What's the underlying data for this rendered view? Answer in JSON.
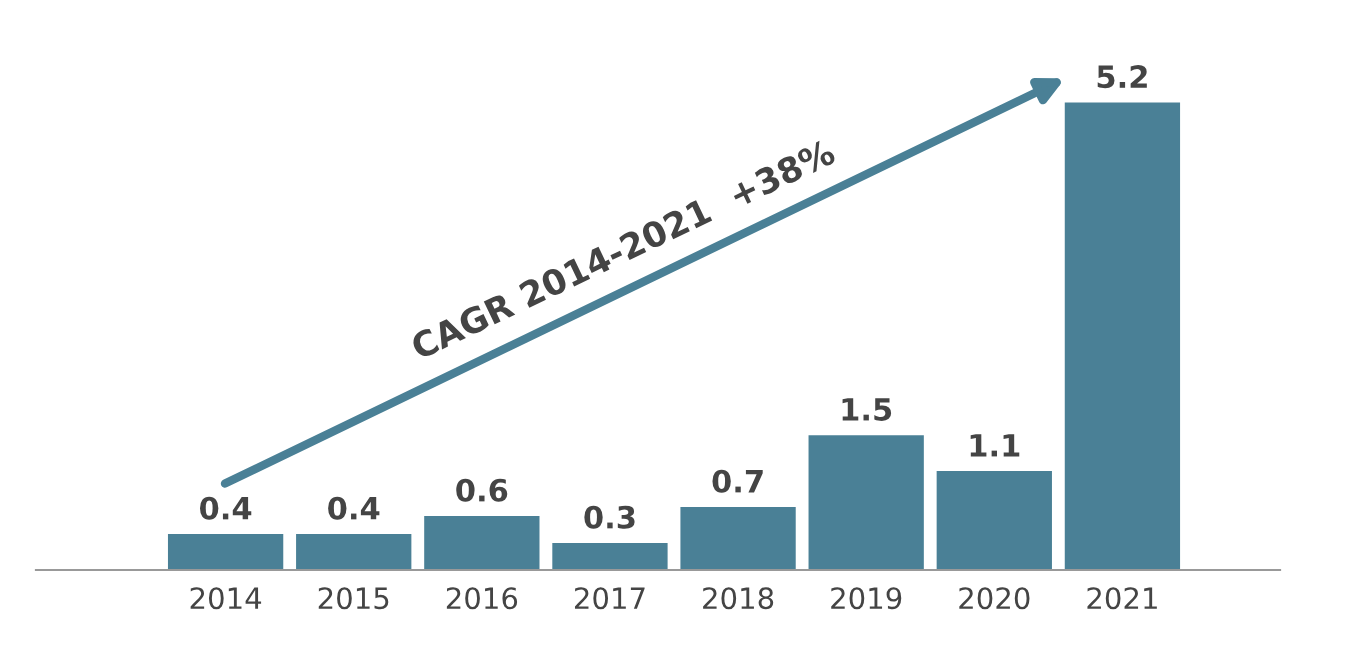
{
  "chart_data": {
    "type": "bar",
    "categories": [
      "2014",
      "2015",
      "2016",
      "2017",
      "2018",
      "2019",
      "2020",
      "2021"
    ],
    "values": [
      0.4,
      0.4,
      0.6,
      0.3,
      0.7,
      1.5,
      1.1,
      5.2
    ],
    "color": "#4a8096",
    "data_labels": true,
    "grid": false,
    "legend": false,
    "annotations": [
      "CAGR 2014-2021  +38%"
    ]
  }
}
